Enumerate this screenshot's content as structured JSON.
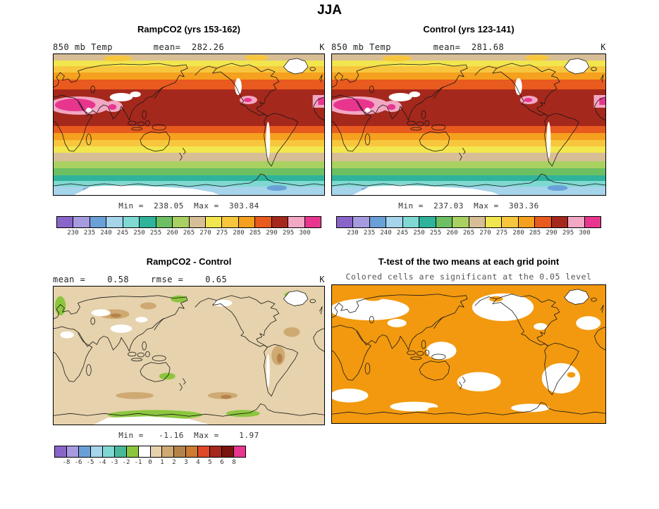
{
  "title": "JJA",
  "panels": [
    {
      "title": "RampCO2 (yrs 153-162)",
      "var_label": "850 mb Temp",
      "mean_text": "mean=  282.26",
      "units": "K",
      "minmax_text": "Min =  238.05  Max =  303.84",
      "colorbar": {
        "labels": [
          "230",
          "235",
          "240",
          "245",
          "250",
          "255",
          "260",
          "265",
          "270",
          "275",
          "280",
          "285",
          "290",
          "295",
          "300"
        ],
        "colors": [
          "#8a65c9",
          "#a79be0",
          "#6aa0d8",
          "#a6d4ea",
          "#7fd9d2",
          "#2fb39b",
          "#6cbf63",
          "#a8d161",
          "#d8be96",
          "#f2e64e",
          "#f7c63d",
          "#f5a01e",
          "#e85a1e",
          "#a5281c",
          "#f2a7c3",
          "#e8368f"
        ]
      }
    },
    {
      "title": "Control (yrs 123-141)",
      "var_label": "850 mb Temp",
      "mean_text": "mean=  281.68",
      "units": "K",
      "minmax_text": "Min =  237.03  Max =  303.36",
      "colorbar": {
        "labels": [
          "230",
          "235",
          "240",
          "245",
          "250",
          "255",
          "260",
          "265",
          "270",
          "275",
          "280",
          "285",
          "290",
          "295",
          "300"
        ],
        "colors": [
          "#8a65c9",
          "#a79be0",
          "#6aa0d8",
          "#a6d4ea",
          "#7fd9d2",
          "#2fb39b",
          "#6cbf63",
          "#a8d161",
          "#d8be96",
          "#f2e64e",
          "#f7c63d",
          "#f5a01e",
          "#e85a1e",
          "#a5281c",
          "#f2a7c3",
          "#e8368f"
        ]
      }
    },
    {
      "title": "RampCO2 - Control",
      "stats_text": "mean =    0.58    rmse =    0.65",
      "units": "K",
      "minmax_text": "Min =   -1.16  Max =    1.97",
      "colorbar": {
        "labels": [
          "-8",
          "-6",
          "-5",
          "-4",
          "-3",
          "-2",
          "-1",
          "0",
          "1",
          "2",
          "3",
          "4",
          "5",
          "6",
          "8"
        ],
        "colors": [
          "#8a65c9",
          "#a79be0",
          "#6aa0d8",
          "#a6d4ea",
          "#7fd9d2",
          "#49b89a",
          "#8cc63f",
          "#ffffff",
          "#e6d2ac",
          "#cfa972",
          "#b5834a",
          "#cd7b32",
          "#e0482a",
          "#a5281c",
          "#7a140e",
          "#e8368f"
        ]
      }
    },
    {
      "title": "T-test of the two means at each grid point",
      "subtitle": "Colored cells are significant at the 0.05 level"
    }
  ],
  "chart_data": [
    {
      "type": "heatmap",
      "panel": "top-left",
      "title": "RampCO2 (yrs 153-162)",
      "variable": "850 mb Temp",
      "units": "K",
      "mean": 282.26,
      "min": 238.05,
      "max": 303.84,
      "colorbar_ticks": [
        230,
        235,
        240,
        245,
        250,
        255,
        260,
        265,
        270,
        275,
        280,
        285,
        290,
        295,
        300
      ]
    },
    {
      "type": "heatmap",
      "panel": "top-right",
      "title": "Control (yrs 123-141)",
      "variable": "850 mb Temp",
      "units": "K",
      "mean": 281.68,
      "min": 237.03,
      "max": 303.36,
      "colorbar_ticks": [
        230,
        235,
        240,
        245,
        250,
        255,
        260,
        265,
        270,
        275,
        280,
        285,
        290,
        295,
        300
      ]
    },
    {
      "type": "heatmap",
      "panel": "bottom-left",
      "title": "RampCO2 - Control",
      "units": "K",
      "mean": 0.58,
      "rmse": 0.65,
      "min": -1.16,
      "max": 1.97,
      "colorbar_ticks": [
        -8,
        -6,
        -5,
        -4,
        -3,
        -2,
        -1,
        0,
        1,
        2,
        3,
        4,
        5,
        6,
        8
      ]
    },
    {
      "type": "heatmap",
      "panel": "bottom-right",
      "title": "T-test of the two means at each grid point",
      "note": "Colored cells are significant at the 0.05 level"
    }
  ]
}
